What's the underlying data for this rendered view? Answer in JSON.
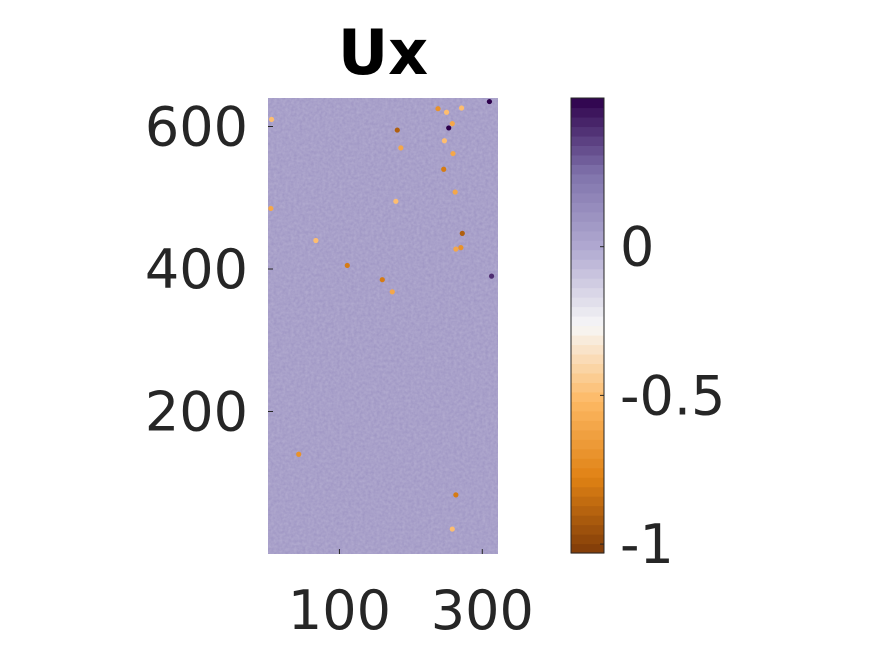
{
  "chart_data": {
    "type": "heatmap",
    "title": "Ux",
    "xlabel": "",
    "ylabel": "",
    "xlim": [
      0,
      322
    ],
    "ylim": [
      0,
      640
    ],
    "x_ticks": [
      {
        "value": 100,
        "label": "100"
      },
      {
        "value": 300,
        "label": "300"
      }
    ],
    "y_ticks": [
      {
        "value": 200,
        "label": "200"
      },
      {
        "value": 400,
        "label": "400"
      },
      {
        "value": 600,
        "label": "600"
      }
    ],
    "field": {
      "background_value": 0.1,
      "hotspots": [
        {
          "x": 5,
          "y": 610,
          "value": -0.5
        },
        {
          "x": 4,
          "y": 485,
          "value": -0.6
        },
        {
          "x": 181,
          "y": 595,
          "value": -0.9
        },
        {
          "x": 186,
          "y": 570,
          "value": -0.6
        },
        {
          "x": 238,
          "y": 625,
          "value": -0.7
        },
        {
          "x": 250,
          "y": 620,
          "value": -0.5
        },
        {
          "x": 271,
          "y": 626,
          "value": -0.5
        },
        {
          "x": 258,
          "y": 604,
          "value": -0.6
        },
        {
          "x": 247,
          "y": 580,
          "value": -0.5
        },
        {
          "x": 259,
          "y": 562,
          "value": -0.6
        },
        {
          "x": 246,
          "y": 540,
          "value": -0.8
        },
        {
          "x": 262,
          "y": 508,
          "value": -0.6
        },
        {
          "x": 179,
          "y": 495,
          "value": -0.5
        },
        {
          "x": 272,
          "y": 450,
          "value": -0.9
        },
        {
          "x": 270,
          "y": 430,
          "value": -0.7
        },
        {
          "x": 263,
          "y": 428,
          "value": -0.6
        },
        {
          "x": 67,
          "y": 440,
          "value": -0.5
        },
        {
          "x": 111,
          "y": 405,
          "value": -0.8
        },
        {
          "x": 160,
          "y": 385,
          "value": -0.8
        },
        {
          "x": 174,
          "y": 368,
          "value": -0.6
        },
        {
          "x": 43,
          "y": 140,
          "value": -0.7
        },
        {
          "x": 263,
          "y": 83,
          "value": -0.8
        },
        {
          "x": 258,
          "y": 35,
          "value": -0.5
        },
        {
          "x": 253,
          "y": 598,
          "value": 0.5
        },
        {
          "x": 310,
          "y": 635,
          "value": 0.5
        },
        {
          "x": 313,
          "y": 390,
          "value": 0.4
        }
      ]
    },
    "colorbar": {
      "colormap": "PuOr",
      "range": [
        -1.03,
        0.5
      ],
      "ticks": [
        {
          "value": 0,
          "label": "0"
        },
        {
          "value": -0.5,
          "label": "-0.5"
        },
        {
          "value": -1,
          "label": "-1"
        }
      ],
      "colors": [
        "#7f3b08",
        "#e08214",
        "#fdb863",
        "#f7f7f7",
        "#b2abd2",
        "#8073ac",
        "#2d004b"
      ]
    }
  }
}
